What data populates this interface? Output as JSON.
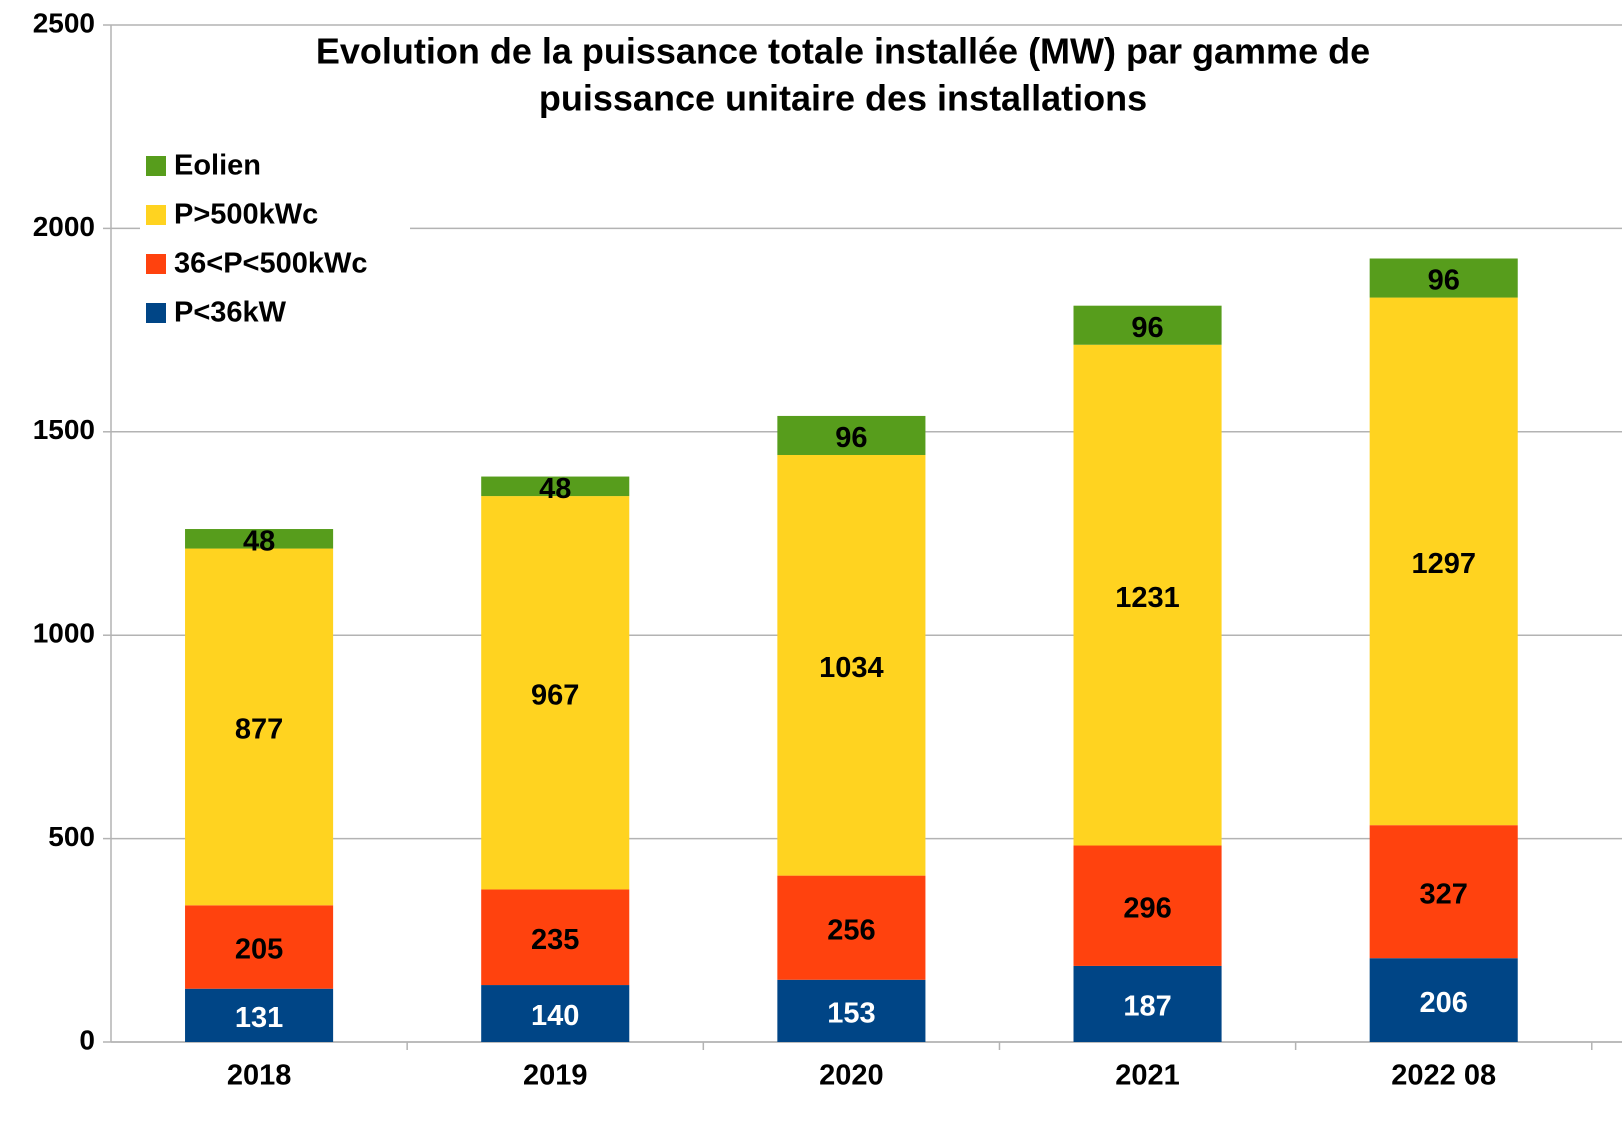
{
  "chart_data": {
    "type": "stacked_bar",
    "title": [
      "Evolution de la puissance totale installée (MW) par gamme de",
      "puissance unitaire des installations"
    ],
    "categories": [
      "2018",
      "2019",
      "2020",
      "2021",
      "2022 08"
    ],
    "series": [
      {
        "name": "P<36kW",
        "color": "#004586",
        "values": [
          131,
          140,
          153,
          187,
          206
        ]
      },
      {
        "name": "36<P<500kWc",
        "color": "#ff420e",
        "values": [
          205,
          235,
          256,
          296,
          327
        ]
      },
      {
        "name": "P>500kWc",
        "color": "#ffd320",
        "values": [
          877,
          967,
          1034,
          1231,
          1297
        ]
      },
      {
        "name": "Eolien",
        "color": "#579d1c",
        "values": [
          48,
          48,
          96,
          96,
          96
        ]
      }
    ],
    "ylim": [
      0,
      2500
    ],
    "yticks": [
      0,
      500,
      1000,
      1500,
      2000,
      2500
    ],
    "grid": true,
    "legend": "upper left"
  }
}
